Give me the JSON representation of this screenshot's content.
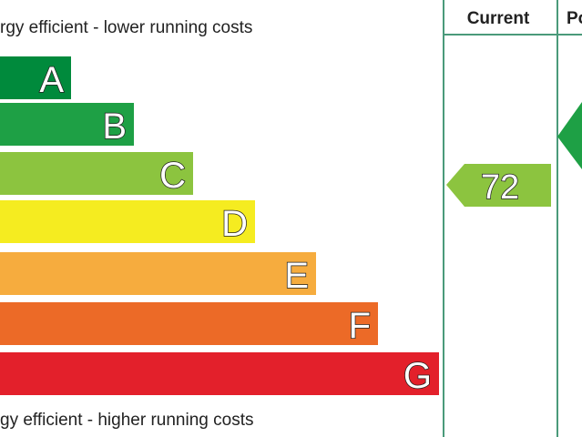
{
  "header": {
    "top_label": "rgy efficient - lower running costs",
    "bottom_label": "gy efficient - higher running costs",
    "columns": [
      "Current",
      "Po"
    ]
  },
  "bands": [
    "A",
    "B",
    "C",
    "D",
    "E",
    "F",
    "G"
  ],
  "current": {
    "value": 72
  }
}
